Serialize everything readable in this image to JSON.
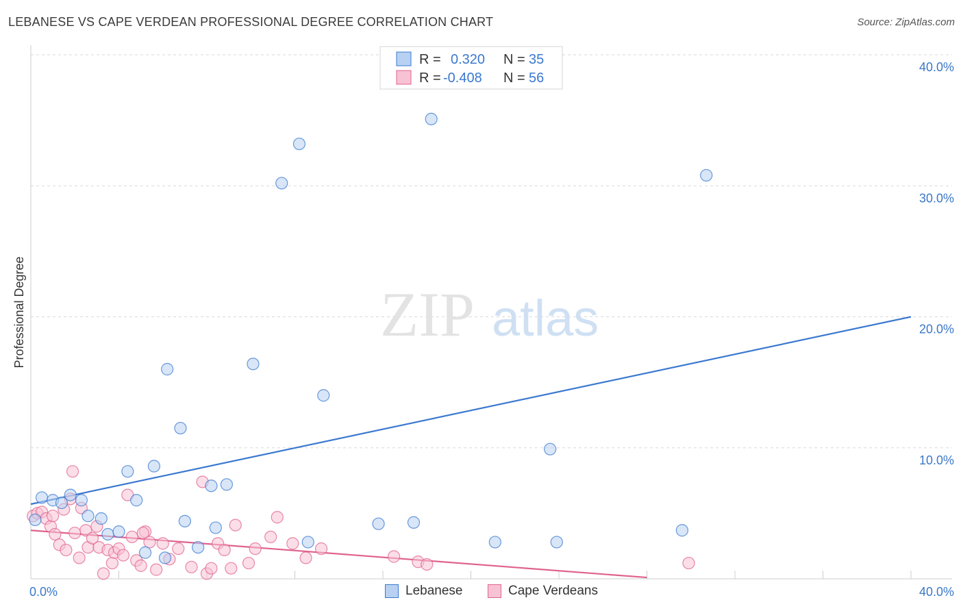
{
  "title": "LEBANESE VS CAPE VERDEAN PROFESSIONAL DEGREE CORRELATION CHART",
  "source": "Source: ZipAtlas.com",
  "watermark": {
    "zip": "ZIP",
    "atlas": "atlas"
  },
  "colors": {
    "blue": "#3a78d0",
    "blue_fill": "#b8d1f2",
    "pink": "#e0618e",
    "pink_fill": "#f7c2d3",
    "tick": "#3b78c8",
    "grid": "#d9d9d9"
  },
  "legend": {
    "row1": {
      "r_label": "R =",
      "r_value": "0.320",
      "n_label": "N =",
      "n_value": "35"
    },
    "row2": {
      "r_label": "R =",
      "r_value": "-0.408",
      "n_label": "N =",
      "n_value": "56"
    }
  },
  "bottom_legend": {
    "series1": "Lebanese",
    "series2": "Cape Verdeans"
  },
  "chart_data": {
    "type": "scatter",
    "ylabel": "Professional Degree",
    "xlim": [
      0,
      40
    ],
    "ylim": [
      0,
      40
    ],
    "x_tick_labels": [
      "0.0%",
      "40.0%"
    ],
    "y_ticks": [
      10,
      20,
      30,
      40
    ],
    "y_tick_labels": [
      "10.0%",
      "20.0%",
      "30.0%",
      "40.0%"
    ],
    "grid": true,
    "series": [
      {
        "name": "Lebanese",
        "color": "#3a78d0",
        "points": [
          [
            0.5,
            6.2
          ],
          [
            1.0,
            6.0
          ],
          [
            1.4,
            5.8
          ],
          [
            1.8,
            6.4
          ],
          [
            2.3,
            6.0
          ],
          [
            2.6,
            4.8
          ],
          [
            3.2,
            4.6
          ],
          [
            3.5,
            3.4
          ],
          [
            4.0,
            3.6
          ],
          [
            4.4,
            8.2
          ],
          [
            4.8,
            6.0
          ],
          [
            5.2,
            2.0
          ],
          [
            5.6,
            8.6
          ],
          [
            6.1,
            1.6
          ],
          [
            6.2,
            16.0
          ],
          [
            6.8,
            11.5
          ],
          [
            7.0,
            4.4
          ],
          [
            7.6,
            2.4
          ],
          [
            8.2,
            7.1
          ],
          [
            8.4,
            3.9
          ],
          [
            8.9,
            7.2
          ],
          [
            10.1,
            16.4
          ],
          [
            11.4,
            30.2
          ],
          [
            12.2,
            33.2
          ],
          [
            12.6,
            2.8
          ],
          [
            13.3,
            14.0
          ],
          [
            15.8,
            4.2
          ],
          [
            17.4,
            4.3
          ],
          [
            18.2,
            35.1
          ],
          [
            21.1,
            2.8
          ],
          [
            23.6,
            9.9
          ],
          [
            23.9,
            2.8
          ],
          [
            29.6,
            3.7
          ],
          [
            30.7,
            30.8
          ],
          [
            0.2,
            4.5
          ]
        ]
      },
      {
        "name": "Cape Verdeans",
        "color": "#e0618e",
        "points": [
          [
            0.1,
            4.8
          ],
          [
            0.3,
            5.0
          ],
          [
            0.5,
            5.1
          ],
          [
            0.7,
            4.6
          ],
          [
            0.9,
            4.0
          ],
          [
            1.0,
            4.8
          ],
          [
            1.1,
            3.4
          ],
          [
            1.3,
            2.6
          ],
          [
            1.5,
            5.3
          ],
          [
            1.6,
            2.2
          ],
          [
            1.8,
            6.1
          ],
          [
            1.9,
            8.2
          ],
          [
            2.0,
            3.5
          ],
          [
            2.2,
            1.6
          ],
          [
            2.3,
            5.4
          ],
          [
            2.5,
            3.7
          ],
          [
            2.6,
            2.4
          ],
          [
            2.8,
            3.1
          ],
          [
            3.0,
            4.0
          ],
          [
            3.1,
            2.4
          ],
          [
            3.3,
            0.4
          ],
          [
            3.5,
            2.2
          ],
          [
            3.7,
            1.2
          ],
          [
            3.8,
            2.0
          ],
          [
            4.0,
            2.3
          ],
          [
            4.2,
            1.8
          ],
          [
            4.4,
            6.4
          ],
          [
            4.6,
            3.2
          ],
          [
            4.8,
            1.4
          ],
          [
            5.0,
            1.0
          ],
          [
            5.2,
            3.6
          ],
          [
            5.4,
            2.8
          ],
          [
            5.7,
            0.7
          ],
          [
            6.0,
            2.7
          ],
          [
            6.3,
            1.5
          ],
          [
            6.7,
            2.3
          ],
          [
            7.3,
            0.9
          ],
          [
            7.8,
            7.4
          ],
          [
            8.0,
            0.4
          ],
          [
            8.2,
            0.8
          ],
          [
            8.5,
            2.7
          ],
          [
            8.8,
            2.2
          ],
          [
            9.1,
            0.8
          ],
          [
            9.3,
            4.1
          ],
          [
            9.9,
            1.2
          ],
          [
            10.2,
            2.3
          ],
          [
            10.9,
            3.2
          ],
          [
            11.2,
            4.7
          ],
          [
            11.9,
            2.7
          ],
          [
            12.5,
            1.6
          ],
          [
            13.2,
            2.3
          ],
          [
            16.5,
            1.7
          ],
          [
            17.6,
            1.3
          ],
          [
            18.0,
            1.1
          ],
          [
            29.9,
            1.2
          ],
          [
            5.1,
            3.5
          ]
        ]
      }
    ],
    "trendlines": [
      {
        "series": "Lebanese",
        "from": [
          0,
          5.7
        ],
        "to": [
          40,
          20.0
        ]
      },
      {
        "series": "Cape Verdeans",
        "from": [
          0,
          3.7
        ],
        "to": [
          28,
          0.1
        ]
      }
    ]
  }
}
